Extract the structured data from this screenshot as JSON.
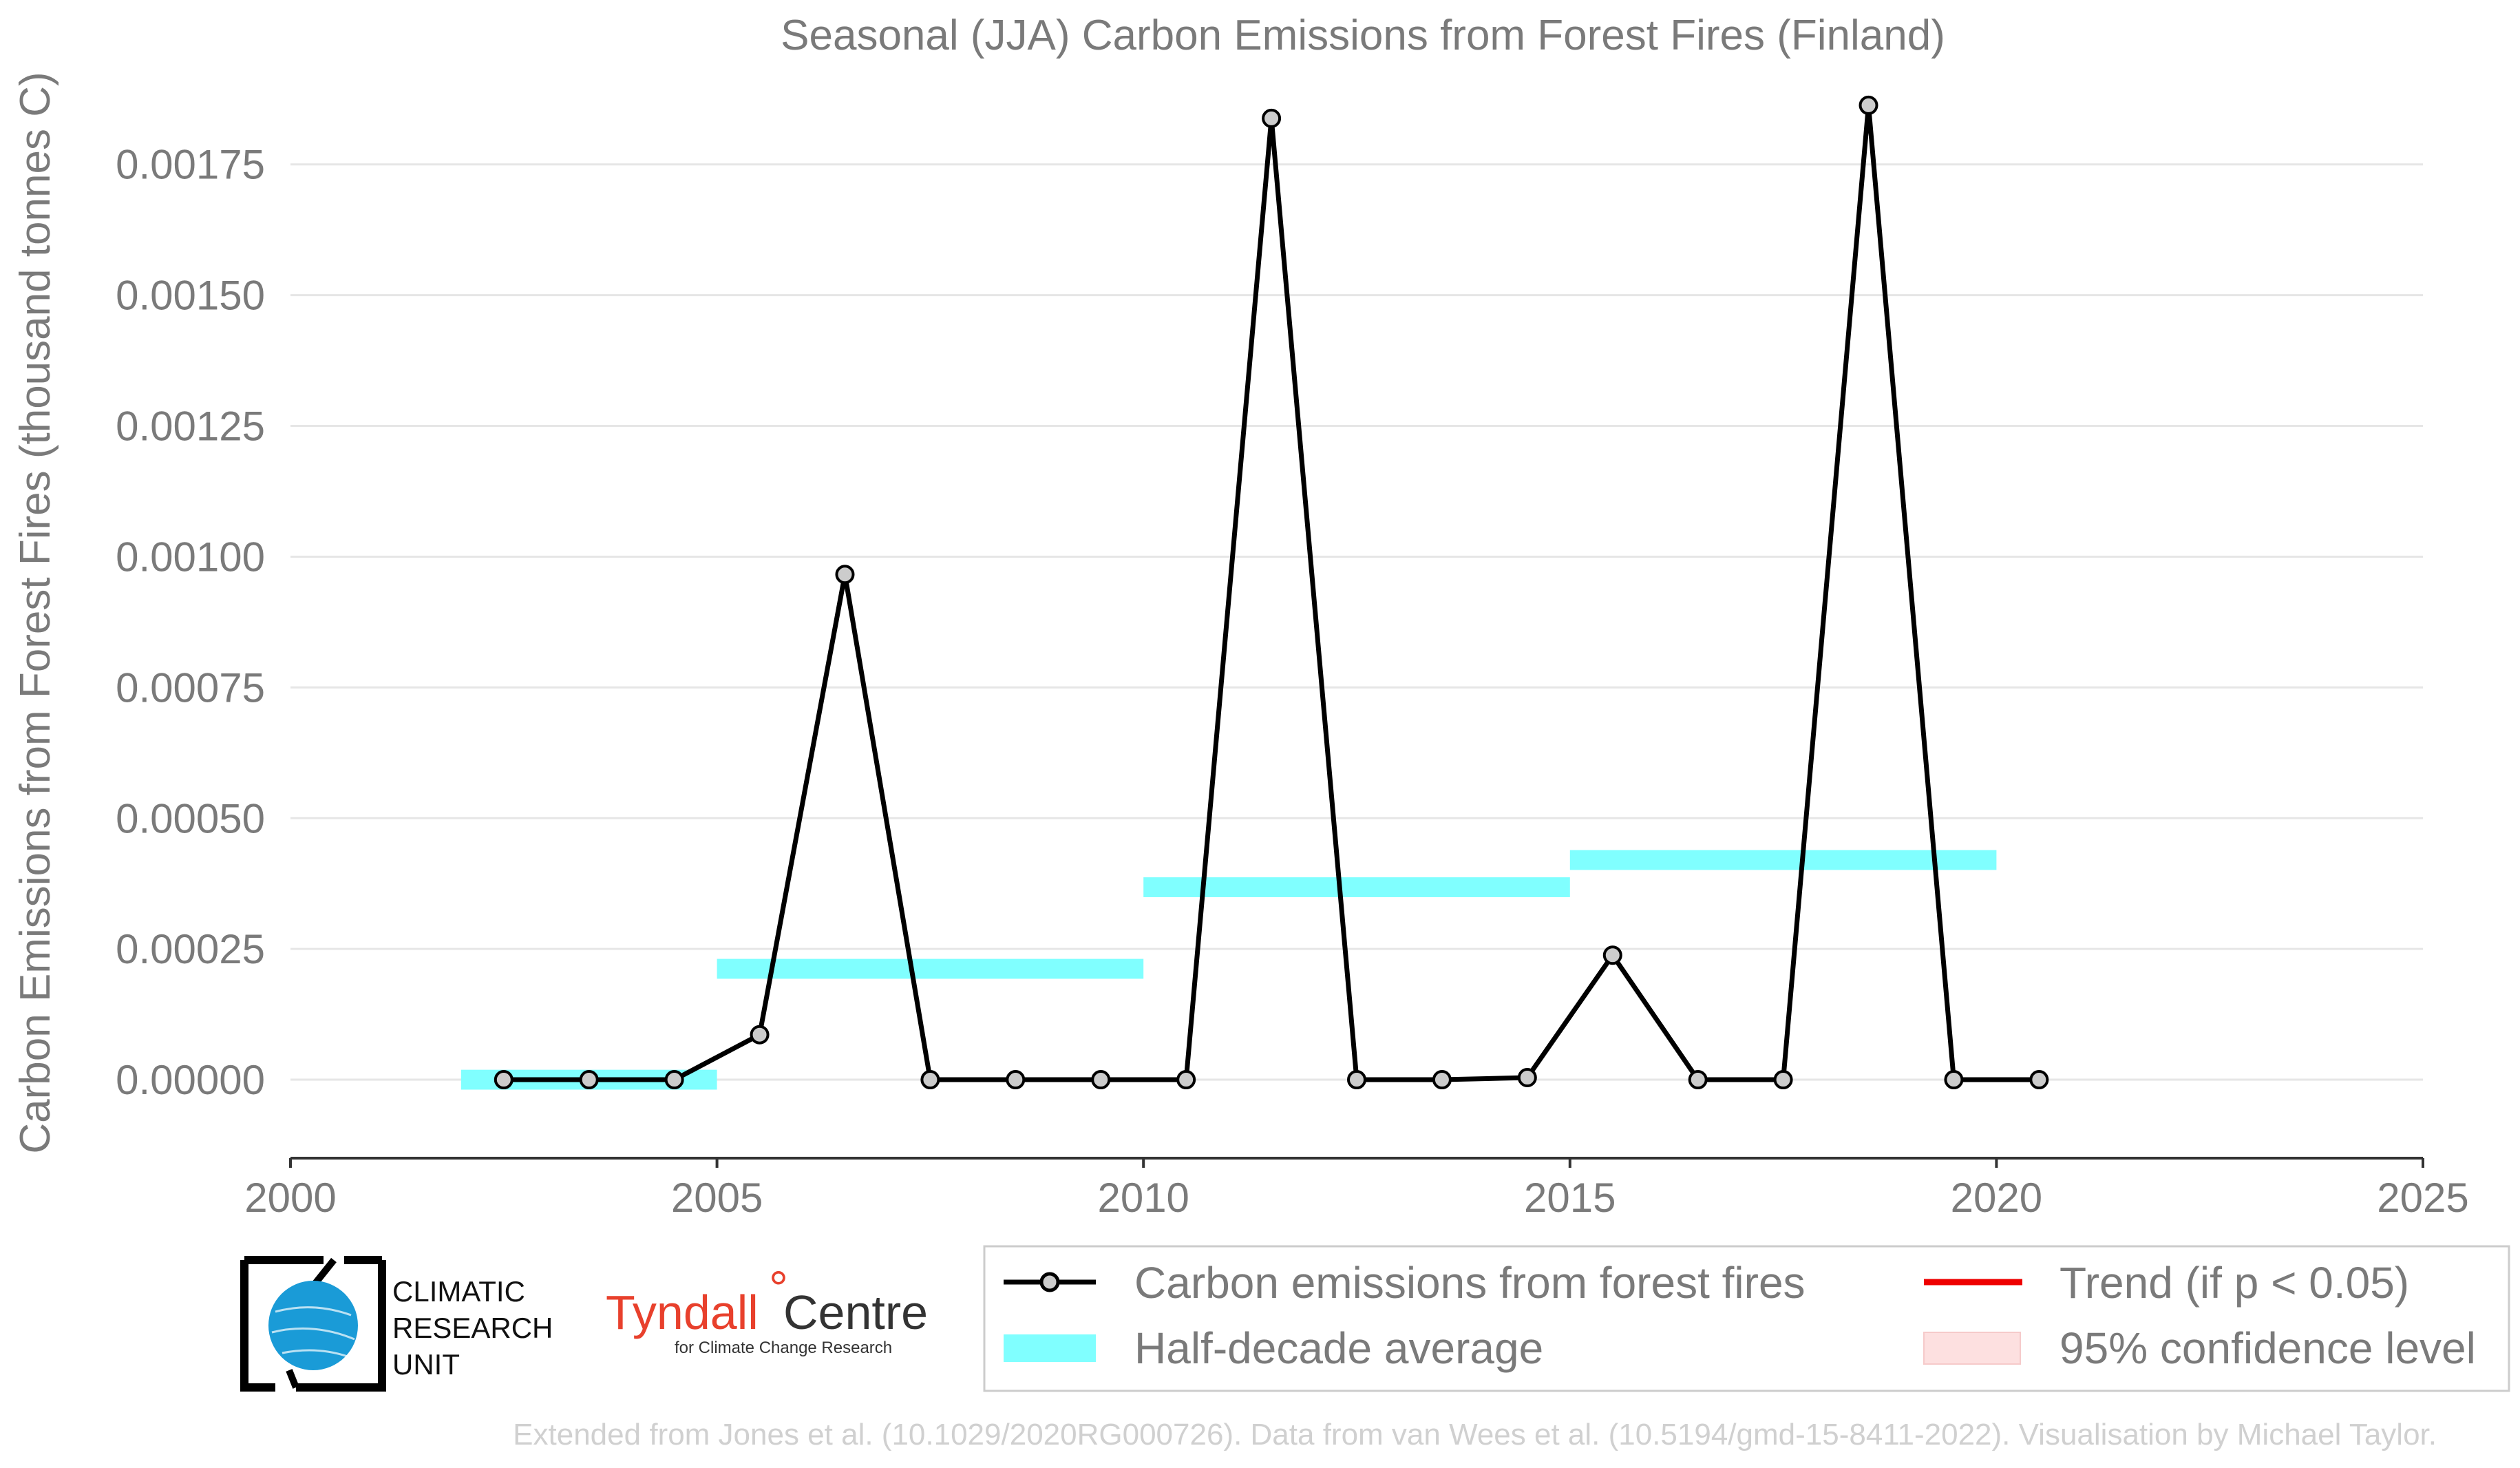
{
  "chart_data": {
    "type": "line",
    "title": "Seasonal (JJA) Carbon Emissions from Forest Fires (Finland)",
    "xlabel": "",
    "ylabel": "Carbon Emissions from Forest Fires (thousand tonnes C)",
    "xlim": [
      2000,
      2025
    ],
    "ylim": [
      -0.00015,
      0.00188
    ],
    "x_ticks": [
      "2000",
      "2005",
      "2010",
      "2015",
      "2020",
      "2025"
    ],
    "y_ticks": [
      "0.00000",
      "0.00025",
      "0.00050",
      "0.00075",
      "0.00100",
      "0.00125",
      "0.00150",
      "0.00175"
    ],
    "series": [
      {
        "name": "Carbon emissions from forest fires",
        "color": "#000000",
        "marker_fill": "#cccccc",
        "x": [
          2002.5,
          2003.5,
          2004.5,
          2005.5,
          2006.5,
          2007.5,
          2008.5,
          2009.5,
          2010.5,
          2011.5,
          2012.5,
          2013.5,
          2014.5,
          2015.5,
          2016.5,
          2017.5,
          2018.5,
          2019.5,
          2020.5
        ],
        "y": [
          0.0,
          0.0,
          0.0,
          8.6e-05,
          0.000966,
          0.0,
          0.0,
          0.0,
          0.0,
          0.001838,
          0.0,
          0.0,
          4e-06,
          0.000238,
          0.0,
          0.0,
          0.001863,
          0.0,
          0.0
        ]
      }
    ],
    "half_decade_average": {
      "name": "Half-decade average",
      "color": "#80ffff",
      "periods": [
        {
          "start": 2002,
          "end": 2005,
          "value": 0.0
        },
        {
          "start": 2005,
          "end": 2010,
          "value": 0.000212
        },
        {
          "start": 2010,
          "end": 2015,
          "value": 0.000368
        },
        {
          "start": 2015,
          "end": 2020,
          "value": 0.00042
        }
      ]
    },
    "legend": {
      "placement": "bottom",
      "entries": [
        {
          "label": "Carbon emissions from forest fires",
          "kind": "line-marker",
          "color": "#000000"
        },
        {
          "label": "Trend (if p < 0.05)",
          "kind": "line",
          "color": "#ee0000"
        },
        {
          "label": "Half-decade average",
          "kind": "patch",
          "color": "#80ffff"
        },
        {
          "label": "95% confidence level",
          "kind": "patch",
          "color": "#fde0e0"
        }
      ]
    },
    "grid": true
  },
  "logos": {
    "cru": [
      "CLIMATIC",
      "RESEARCH",
      "UNIT"
    ],
    "tyndall_main": "Tyndall",
    "tyndall_centre": "Centre",
    "tyndall_sub": "for Climate Change Research"
  },
  "footnote": "Extended from Jones et al. (10.1029/2020RG000726). Data from van Wees et al. (10.5194/gmd-15-8411-2022). Visualisation by Michael Taylor."
}
